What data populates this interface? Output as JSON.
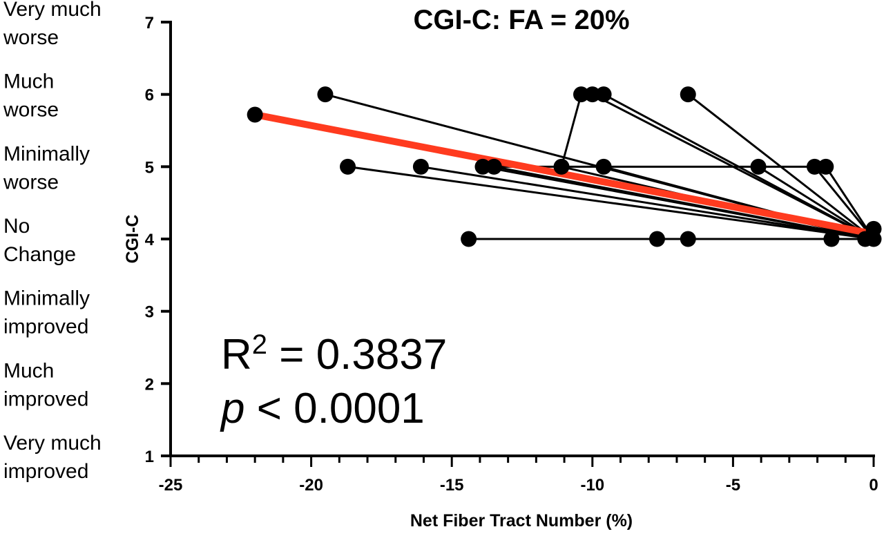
{
  "chart_data": {
    "type": "scatter",
    "title": "CGI-C: FA = 20%",
    "xlabel": "Net Fiber Tract Number (%)",
    "ylabel": "CGI-C",
    "xlim": [
      -25,
      0
    ],
    "ylim": [
      1,
      7
    ],
    "x_ticks": [
      -25,
      -20,
      -15,
      -10,
      -5,
      0
    ],
    "y_ticks": [
      1,
      2,
      3,
      4,
      5,
      6,
      7
    ],
    "x_minor_step": 1,
    "y_categories": [
      {
        "y": 7,
        "lines": [
          "Very much",
          "worse"
        ]
      },
      {
        "y": 6,
        "lines": [
          "Much",
          "worse"
        ]
      },
      {
        "y": 5,
        "lines": [
          "Minimally",
          "worse"
        ]
      },
      {
        "y": 4,
        "lines": [
          "No",
          "Change"
        ]
      },
      {
        "y": 3,
        "lines": [
          "Minimally",
          "improved"
        ]
      },
      {
        "y": 2,
        "lines": [
          "Much",
          "improved"
        ]
      },
      {
        "y": 1,
        "lines": [
          "Very much",
          "improved"
        ]
      }
    ],
    "annotation": {
      "r_label": "R",
      "r_sup": "2",
      "r_value": " = 0.3837",
      "p_label": "p",
      "p_value": " < 0.0001"
    },
    "connections": [
      {
        "from": [
          -19.5,
          6
        ],
        "to": [
          0,
          4
        ]
      },
      {
        "from": [
          -10.4,
          6
        ],
        "to": [
          -11.1,
          5
        ]
      },
      {
        "from": [
          -10.0,
          6
        ],
        "to": [
          0,
          4
        ]
      },
      {
        "from": [
          -9.6,
          6
        ],
        "to": [
          0,
          4
        ]
      },
      {
        "from": [
          -6.6,
          6
        ],
        "to": [
          0,
          4
        ]
      },
      {
        "from": [
          -18.7,
          5
        ],
        "to": [
          0,
          4
        ]
      },
      {
        "from": [
          -16.1,
          5
        ],
        "to": [
          0,
          4
        ]
      },
      {
        "from": [
          -13.9,
          5
        ],
        "to": [
          0,
          4
        ]
      },
      {
        "from": [
          -13.5,
          5
        ],
        "to": [
          0,
          4
        ]
      },
      {
        "from": [
          -11.1,
          5
        ],
        "to": [
          0,
          4
        ]
      },
      {
        "from": [
          -9.6,
          5
        ],
        "to": [
          0,
          4
        ]
      },
      {
        "from": [
          -13.5,
          5
        ],
        "to": [
          -1.7,
          5
        ]
      },
      {
        "from": [
          -4.1,
          5
        ],
        "to": [
          0,
          4
        ]
      },
      {
        "from": [
          -2.1,
          5
        ],
        "to": [
          0,
          4
        ]
      },
      {
        "from": [
          -1.7,
          5
        ],
        "to": [
          0,
          4
        ]
      },
      {
        "from": [
          -14.4,
          4
        ],
        "to": [
          0,
          4
        ]
      }
    ],
    "points": [
      {
        "x": -22.0,
        "y": 5.72
      },
      {
        "x": -19.5,
        "y": 6
      },
      {
        "x": -10.4,
        "y": 6
      },
      {
        "x": -10.0,
        "y": 6
      },
      {
        "x": -9.6,
        "y": 6
      },
      {
        "x": -6.6,
        "y": 6
      },
      {
        "x": -18.7,
        "y": 5
      },
      {
        "x": -16.1,
        "y": 5
      },
      {
        "x": -13.9,
        "y": 5
      },
      {
        "x": -13.5,
        "y": 5
      },
      {
        "x": -11.1,
        "y": 5
      },
      {
        "x": -9.6,
        "y": 5
      },
      {
        "x": -4.1,
        "y": 5
      },
      {
        "x": -2.1,
        "y": 5
      },
      {
        "x": -1.7,
        "y": 5
      },
      {
        "x": -14.4,
        "y": 4
      },
      {
        "x": -7.7,
        "y": 4
      },
      {
        "x": -6.6,
        "y": 4
      },
      {
        "x": -1.5,
        "y": 4
      },
      {
        "x": -0.3,
        "y": 4
      },
      {
        "x": 0,
        "y": 4
      },
      {
        "x": 0,
        "y": 4.14
      }
    ],
    "regression": {
      "from": [
        -22.0,
        5.72
      ],
      "to": [
        0,
        4.07
      ],
      "color": "#ff3b1f"
    },
    "point_color": "#000000",
    "line_color": "#000000",
    "grid": false,
    "legend": "none"
  }
}
